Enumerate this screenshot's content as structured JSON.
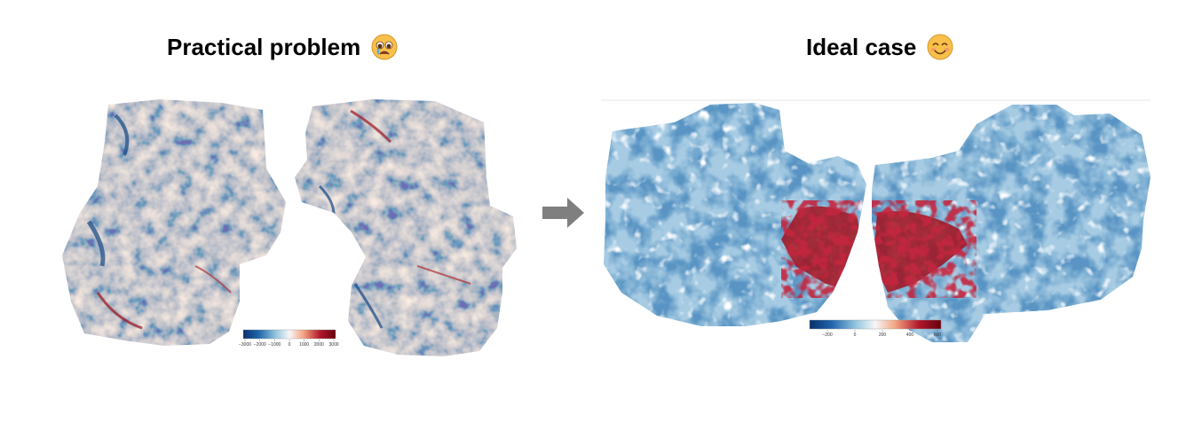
{
  "panels": [
    {
      "title": "Practical problem",
      "emoji": "crying-face-icon",
      "colorbar": {
        "ticks": [
          "−3000",
          "−2000",
          "−1000",
          "0",
          "1000",
          "2000",
          "3000"
        ],
        "colors": [
          "#08306b",
          "#2166ac",
          "#92c5de",
          "#f7f7f7",
          "#f4a582",
          "#b2182b",
          "#67000d"
        ]
      }
    },
    {
      "title": "Ideal case",
      "emoji": "smiling-face-icon",
      "colorbar": {
        "ticks": [
          "−200",
          "0",
          "200",
          "400",
          "600"
        ],
        "colors": [
          "#08306b",
          "#2166ac",
          "#92c5de",
          "#f7f7f7",
          "#f4a582",
          "#b2182b",
          "#67000d"
        ]
      }
    }
  ],
  "arrow": "right-arrow-icon"
}
